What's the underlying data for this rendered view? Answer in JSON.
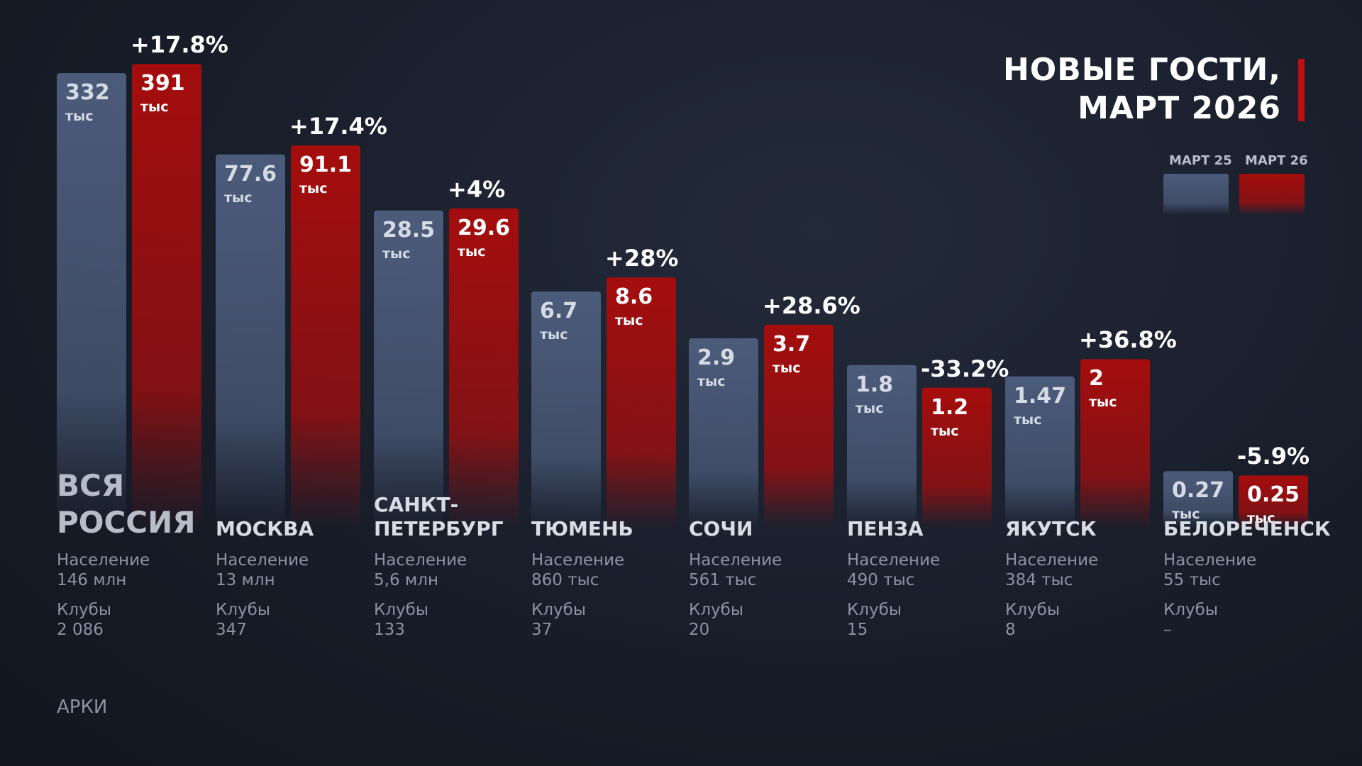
{
  "chart_data": {
    "type": "bar",
    "title": "НОВЫЕ ГОСТИ, МАРТ 2026",
    "unit": "тыс",
    "categories": [
      "ВСЯ РОССИЯ",
      "МОСКВА",
      "САНКТ-ПЕТЕРБУРГ",
      "ТЮМЕНЬ",
      "СОЧИ",
      "ПЕНЗА",
      "ЯКУТСК",
      "БЕЛОРЕЧЕНСК"
    ],
    "series": [
      {
        "name": "МАРТ 25",
        "color": "#4b5b7a",
        "values": [
          332,
          77.6,
          28.5,
          6.7,
          2.9,
          1.8,
          1.47,
          0.27
        ]
      },
      {
        "name": "МАРТ 26",
        "color": "#a50d0d",
        "values": [
          391,
          91.1,
          29.6,
          8.6,
          3.7,
          1.2,
          2,
          0.25
        ]
      }
    ],
    "changes": [
      17.8,
      17.4,
      4,
      28,
      28.6,
      -33.2,
      36.8,
      -5.9
    ],
    "change_labels": [
      "+17.8%",
      "+17.4%",
      "+4%",
      "+28%",
      "+28.6%",
      "-33.2%",
      "+36.8%",
      "-5.9%"
    ],
    "population_label": "Население",
    "population": [
      "146 млн",
      "13 млн",
      "5,6 млн",
      "860 тыс",
      "561 тыс",
      "490 тыс",
      "384 тыс",
      "55 тыс"
    ],
    "clubs_label": "Клубы",
    "clubs": [
      "2 086",
      "347",
      "133",
      "37",
      "20",
      "15",
      "8",
      "–"
    ],
    "source": "АРКИ"
  }
}
